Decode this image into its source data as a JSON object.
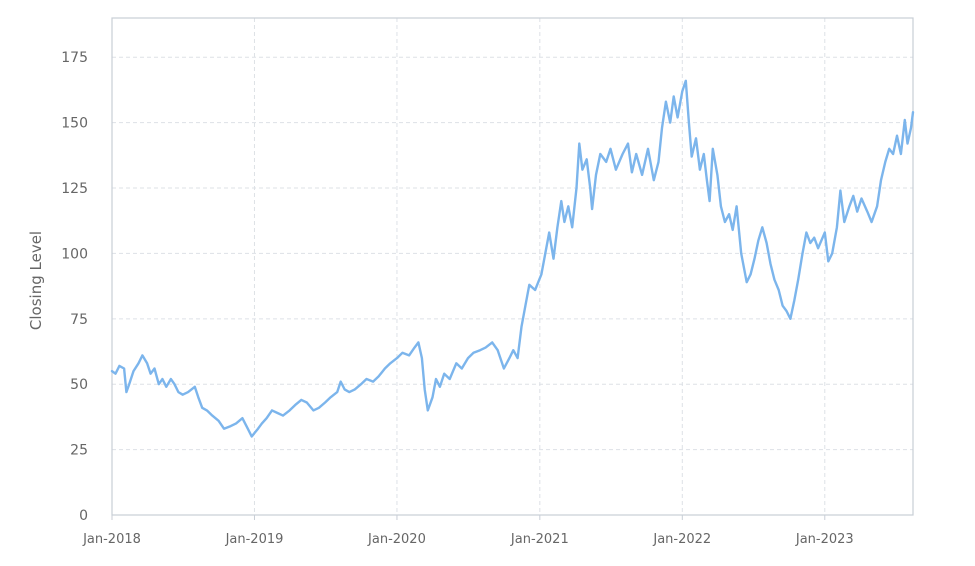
{
  "chart_data": {
    "type": "line",
    "title": "",
    "xlabel": "",
    "ylabel": "Closing Level",
    "ylim": [
      0,
      190
    ],
    "xlim": [
      "2018-01-01",
      "2023-08-15"
    ],
    "yticks": [
      0,
      25,
      50,
      75,
      100,
      125,
      150,
      175
    ],
    "xticks": [
      "Jan-2018",
      "Jan-2019",
      "Jan-2020",
      "Jan-2021",
      "Jan-2022",
      "Jan-2023"
    ],
    "xtick_dates": [
      "2018-01-01",
      "2019-01-01",
      "2020-01-01",
      "2021-01-01",
      "2022-01-01",
      "2023-01-01"
    ],
    "grid": true,
    "legend": "none",
    "colors": {
      "series": "#7cb5ec",
      "grid": "#dde1e6",
      "frame": "#c8ced6",
      "text": "#666666"
    },
    "series": [
      {
        "points": [
          [
            "2018-01-01",
            55
          ],
          [
            "2018-01-10",
            54
          ],
          [
            "2018-01-20",
            57
          ],
          [
            "2018-02-01",
            56
          ],
          [
            "2018-02-07",
            47
          ],
          [
            "2018-02-14",
            50
          ],
          [
            "2018-02-25",
            55
          ],
          [
            "2018-03-10",
            58
          ],
          [
            "2018-03-20",
            61
          ],
          [
            "2018-04-01",
            58
          ],
          [
            "2018-04-10",
            54
          ],
          [
            "2018-04-20",
            56
          ],
          [
            "2018-05-01",
            50
          ],
          [
            "2018-05-10",
            52
          ],
          [
            "2018-05-20",
            49
          ],
          [
            "2018-06-01",
            52
          ],
          [
            "2018-06-10",
            50
          ],
          [
            "2018-06-20",
            47
          ],
          [
            "2018-07-01",
            46
          ],
          [
            "2018-07-15",
            47
          ],
          [
            "2018-08-01",
            49
          ],
          [
            "2018-08-10",
            45
          ],
          [
            "2018-08-20",
            41
          ],
          [
            "2018-09-01",
            40
          ],
          [
            "2018-09-15",
            38
          ],
          [
            "2018-10-01",
            36
          ],
          [
            "2018-10-15",
            33
          ],
          [
            "2018-11-01",
            34
          ],
          [
            "2018-11-15",
            35
          ],
          [
            "2018-12-01",
            37
          ],
          [
            "2018-12-15",
            33
          ],
          [
            "2018-12-25",
            30
          ],
          [
            "2019-01-10",
            33
          ],
          [
            "2019-01-20",
            35
          ],
          [
            "2019-02-01",
            37
          ],
          [
            "2019-02-15",
            40
          ],
          [
            "2019-03-01",
            39
          ],
          [
            "2019-03-15",
            38
          ],
          [
            "2019-04-01",
            40
          ],
          [
            "2019-04-15",
            42
          ],
          [
            "2019-05-01",
            44
          ],
          [
            "2019-05-15",
            43
          ],
          [
            "2019-06-01",
            40
          ],
          [
            "2019-06-15",
            41
          ],
          [
            "2019-07-01",
            43
          ],
          [
            "2019-07-15",
            45
          ],
          [
            "2019-08-01",
            47
          ],
          [
            "2019-08-10",
            51
          ],
          [
            "2019-08-20",
            48
          ],
          [
            "2019-09-01",
            47
          ],
          [
            "2019-09-15",
            48
          ],
          [
            "2019-10-01",
            50
          ],
          [
            "2019-10-15",
            52
          ],
          [
            "2019-11-01",
            51
          ],
          [
            "2019-11-15",
            53
          ],
          [
            "2019-12-01",
            56
          ],
          [
            "2019-12-15",
            58
          ],
          [
            "2020-01-01",
            60
          ],
          [
            "2020-01-15",
            62
          ],
          [
            "2020-02-01",
            61
          ],
          [
            "2020-02-15",
            64
          ],
          [
            "2020-02-25",
            66
          ],
          [
            "2020-03-05",
            60
          ],
          [
            "2020-03-12",
            48
          ],
          [
            "2020-03-20",
            40
          ],
          [
            "2020-04-01",
            45
          ],
          [
            "2020-04-10",
            52
          ],
          [
            "2020-04-20",
            49
          ],
          [
            "2020-05-01",
            54
          ],
          [
            "2020-05-15",
            52
          ],
          [
            "2020-06-01",
            58
          ],
          [
            "2020-06-15",
            56
          ],
          [
            "2020-07-01",
            60
          ],
          [
            "2020-07-15",
            62
          ],
          [
            "2020-08-01",
            63
          ],
          [
            "2020-08-15",
            64
          ],
          [
            "2020-09-01",
            66
          ],
          [
            "2020-09-15",
            63
          ],
          [
            "2020-10-01",
            56
          ],
          [
            "2020-10-15",
            60
          ],
          [
            "2020-10-25",
            63
          ],
          [
            "2020-11-05",
            60
          ],
          [
            "2020-11-15",
            72
          ],
          [
            "2020-11-25",
            80
          ],
          [
            "2020-12-05",
            88
          ],
          [
            "2020-12-20",
            86
          ],
          [
            "2021-01-05",
            92
          ],
          [
            "2021-01-15",
            100
          ],
          [
            "2021-01-25",
            108
          ],
          [
            "2021-02-05",
            98
          ],
          [
            "2021-02-15",
            110
          ],
          [
            "2021-02-25",
            120
          ],
          [
            "2021-03-05",
            112
          ],
          [
            "2021-03-15",
            118
          ],
          [
            "2021-03-25",
            110
          ],
          [
            "2021-04-05",
            125
          ],
          [
            "2021-04-12",
            142
          ],
          [
            "2021-04-20",
            132
          ],
          [
            "2021-05-01",
            136
          ],
          [
            "2021-05-10",
            125
          ],
          [
            "2021-05-15",
            117
          ],
          [
            "2021-05-25",
            130
          ],
          [
            "2021-06-05",
            138
          ],
          [
            "2021-06-20",
            135
          ],
          [
            "2021-07-01",
            140
          ],
          [
            "2021-07-15",
            132
          ],
          [
            "2021-08-01",
            138
          ],
          [
            "2021-08-15",
            142
          ],
          [
            "2021-08-25",
            131
          ],
          [
            "2021-09-05",
            138
          ],
          [
            "2021-09-20",
            130
          ],
          [
            "2021-10-05",
            140
          ],
          [
            "2021-10-20",
            128
          ],
          [
            "2021-11-01",
            135
          ],
          [
            "2021-11-10",
            148
          ],
          [
            "2021-11-20",
            158
          ],
          [
            "2021-12-01",
            150
          ],
          [
            "2021-12-10",
            160
          ],
          [
            "2021-12-20",
            152
          ],
          [
            "2022-01-01",
            162
          ],
          [
            "2022-01-10",
            166
          ],
          [
            "2022-01-18",
            150
          ],
          [
            "2022-01-25",
            137
          ],
          [
            "2022-02-05",
            144
          ],
          [
            "2022-02-15",
            132
          ],
          [
            "2022-02-25",
            138
          ],
          [
            "2022-03-05",
            128
          ],
          [
            "2022-03-12",
            120
          ],
          [
            "2022-03-20",
            140
          ],
          [
            "2022-04-01",
            130
          ],
          [
            "2022-04-10",
            118
          ],
          [
            "2022-04-20",
            112
          ],
          [
            "2022-05-01",
            115
          ],
          [
            "2022-05-10",
            109
          ],
          [
            "2022-05-20",
            118
          ],
          [
            "2022-06-01",
            100
          ],
          [
            "2022-06-15",
            89
          ],
          [
            "2022-06-25",
            92
          ],
          [
            "2022-07-05",
            98
          ],
          [
            "2022-07-15",
            105
          ],
          [
            "2022-07-25",
            110
          ],
          [
            "2022-08-05",
            104
          ],
          [
            "2022-08-15",
            96
          ],
          [
            "2022-08-25",
            90
          ],
          [
            "2022-09-05",
            86
          ],
          [
            "2022-09-15",
            80
          ],
          [
            "2022-09-25",
            78
          ],
          [
            "2022-10-05",
            75
          ],
          [
            "2022-10-15",
            82
          ],
          [
            "2022-10-25",
            90
          ],
          [
            "2022-11-05",
            100
          ],
          [
            "2022-11-15",
            108
          ],
          [
            "2022-11-25",
            104
          ],
          [
            "2022-12-05",
            106
          ],
          [
            "2022-12-15",
            102
          ],
          [
            "2023-01-01",
            108
          ],
          [
            "2023-01-10",
            97
          ],
          [
            "2023-01-20",
            100
          ],
          [
            "2023-02-01",
            110
          ],
          [
            "2023-02-10",
            124
          ],
          [
            "2023-02-20",
            112
          ],
          [
            "2023-03-05",
            118
          ],
          [
            "2023-03-15",
            122
          ],
          [
            "2023-03-25",
            116
          ],
          [
            "2023-04-05",
            121
          ],
          [
            "2023-04-20",
            116
          ],
          [
            "2023-05-01",
            112
          ],
          [
            "2023-05-15",
            118
          ],
          [
            "2023-05-25",
            128
          ],
          [
            "2023-06-05",
            135
          ],
          [
            "2023-06-15",
            140
          ],
          [
            "2023-06-25",
            138
          ],
          [
            "2023-07-05",
            145
          ],
          [
            "2023-07-15",
            138
          ],
          [
            "2023-07-25",
            151
          ],
          [
            "2023-08-01",
            142
          ],
          [
            "2023-08-10",
            148
          ],
          [
            "2023-08-15",
            154
          ]
        ]
      }
    ]
  }
}
